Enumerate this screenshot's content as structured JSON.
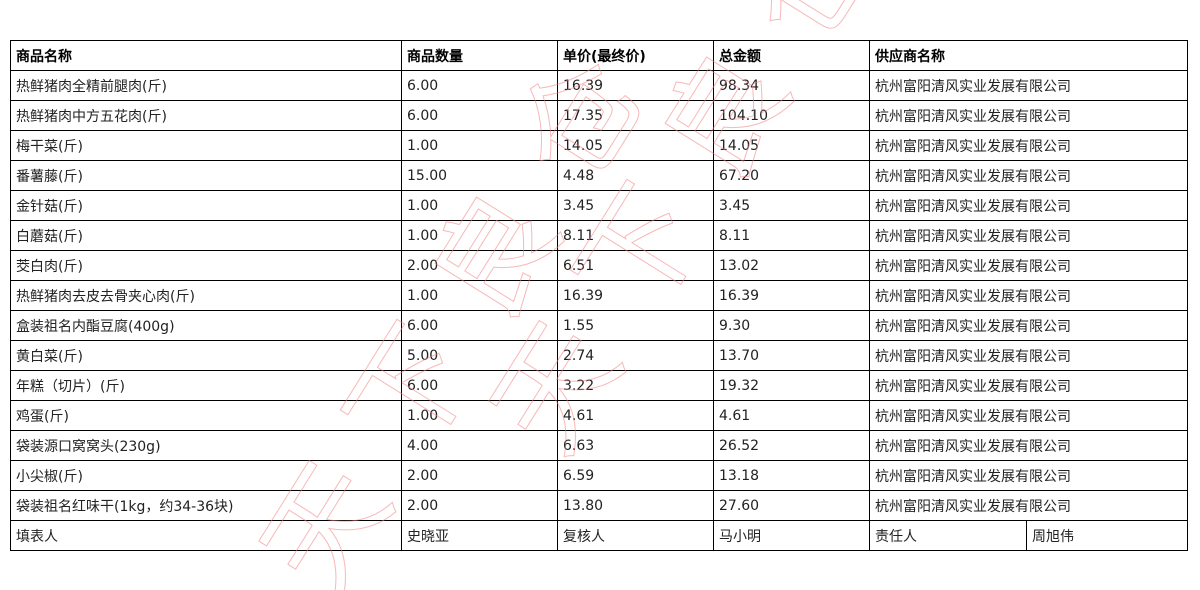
{
  "watermark": "天下良仓",
  "table": {
    "headers": [
      "商品名称",
      "商品数量",
      "单价(最终价)",
      "总金额",
      "供应商名称"
    ],
    "rows": [
      [
        "热鲜猪肉全精前腿肉(斤)",
        "6.00",
        "16.39",
        "98.34",
        "杭州富阳清风实业发展有限公司"
      ],
      [
        "热鲜猪肉中方五花肉(斤)",
        "6.00",
        "17.35",
        "104.10",
        "杭州富阳清风实业发展有限公司"
      ],
      [
        "梅干菜(斤)",
        "1.00",
        "14.05",
        "14.05",
        "杭州富阳清风实业发展有限公司"
      ],
      [
        "番薯藤(斤)",
        "15.00",
        "4.48",
        "67.20",
        "杭州富阳清风实业发展有限公司"
      ],
      [
        "金针菇(斤)",
        "1.00",
        "3.45",
        "3.45",
        "杭州富阳清风实业发展有限公司"
      ],
      [
        "白蘑菇(斤)",
        "1.00",
        "8.11",
        "8.11",
        "杭州富阳清风实业发展有限公司"
      ],
      [
        "茭白肉(斤)",
        "2.00",
        "6.51",
        "13.02",
        "杭州富阳清风实业发展有限公司"
      ],
      [
        "热鲜猪肉去皮去骨夹心肉(斤)",
        "1.00",
        "16.39",
        "16.39",
        "杭州富阳清风实业发展有限公司"
      ],
      [
        "盒装祖名内酯豆腐(400g)",
        "6.00",
        "1.55",
        "9.30",
        "杭州富阳清风实业发展有限公司"
      ],
      [
        "黄白菜(斤)",
        "5.00",
        "2.74",
        "13.70",
        "杭州富阳清风实业发展有限公司"
      ],
      [
        "年糕（切片）(斤)",
        "6.00",
        "3.22",
        "19.32",
        "杭州富阳清风实业发展有限公司"
      ],
      [
        "鸡蛋(斤)",
        "1.00",
        "4.61",
        "4.61",
        "杭州富阳清风实业发展有限公司"
      ],
      [
        "袋装源口窝窝头(230g)",
        "4.00",
        "6.63",
        "26.52",
        "杭州富阳清风实业发展有限公司"
      ],
      [
        "小尖椒(斤)",
        "2.00",
        "6.59",
        "13.18",
        "杭州富阳清风实业发展有限公司"
      ],
      [
        "袋装祖名红味干(1kg，约34-36块)",
        "2.00",
        "13.80",
        "27.60",
        "杭州富阳清风实业发展有限公司"
      ]
    ],
    "footer": {
      "filler_label": "填表人",
      "filler": "史晓亚",
      "reviewer_label": "复核人",
      "reviewer": "马小明",
      "responsible_label": "责任人",
      "responsible": "周旭伟"
    }
  }
}
